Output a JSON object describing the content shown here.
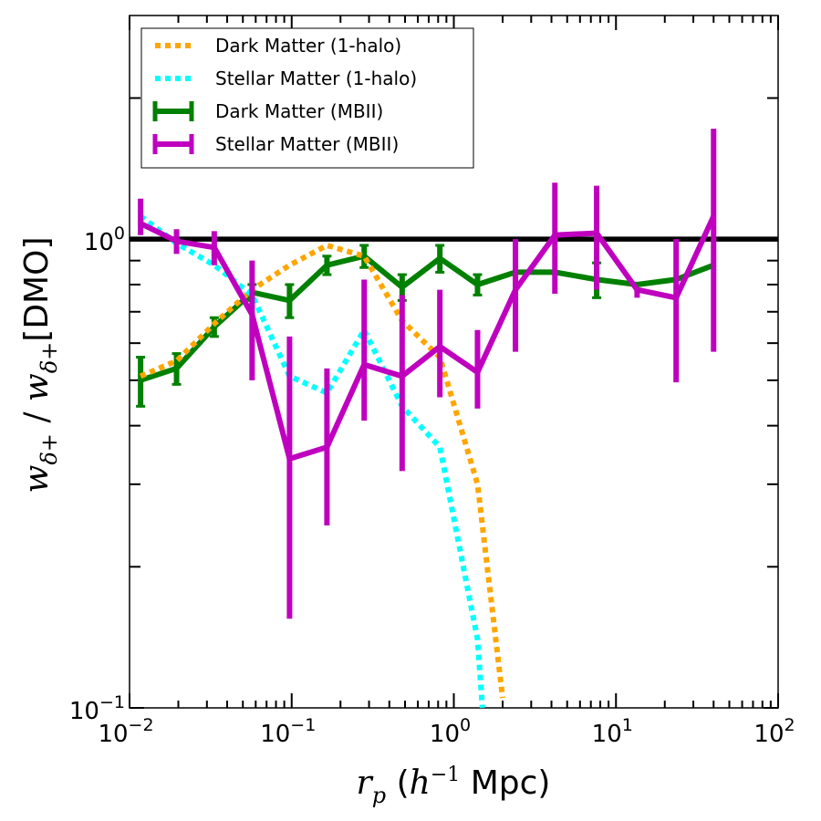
{
  "chart_data": {
    "type": "line",
    "xscale": "log",
    "yscale": "log",
    "xlim": [
      0.01,
      100
    ],
    "ylim": [
      0.1,
      3.0
    ],
    "xlabel": {
      "main": "r",
      "sub": "p",
      "open": " (",
      "base": "h",
      "sup": "−1",
      "unit": " Mpc)"
    },
    "ylabel": {
      "w1": "w",
      "sub1": "δ+",
      "slash": " / ",
      "w2": "w",
      "sub2": "δ+",
      "bracket": "[DMO]"
    },
    "x_major_ticks": [
      {
        "value": 0.01,
        "base": "10",
        "exp": "-2"
      },
      {
        "value": 0.1,
        "base": "10",
        "exp": "-1"
      },
      {
        "value": 1,
        "base": "10",
        "exp": "0"
      },
      {
        "value": 10,
        "base": "10",
        "exp": "1"
      },
      {
        "value": 100,
        "base": "10",
        "exp": "2"
      }
    ],
    "y_major_ticks": [
      {
        "value": 0.1,
        "base": "10",
        "exp": "-1"
      },
      {
        "value": 1,
        "base": "10",
        "exp": "0"
      }
    ],
    "y_minor_ticks": [
      0.2,
      0.3,
      0.4,
      0.5,
      0.6,
      0.7,
      0.8,
      0.9,
      2.0
    ],
    "reference_line": {
      "y": 1.0,
      "color": "#000000"
    },
    "legend": {
      "location": "top-left"
    },
    "series": [
      {
        "name": "Dark Matter (1-halo)",
        "style": "dotted",
        "color": "#ffa500",
        "x": [
          0.0117,
          0.0195,
          0.0333,
          0.057,
          0.097,
          0.165,
          0.28,
          0.48,
          0.82,
          1.4,
          2.0
        ],
        "y": [
          0.51,
          0.55,
          0.66,
          0.78,
          0.88,
          0.97,
          0.92,
          0.67,
          0.56,
          0.3,
          0.105
        ]
      },
      {
        "name": "Stellar Matter (1-halo)",
        "style": "dotted",
        "color": "#00ffff",
        "x": [
          0.0117,
          0.0195,
          0.0333,
          0.057,
          0.097,
          0.165,
          0.28,
          0.48,
          0.82,
          1.4,
          1.5
        ],
        "y": [
          1.12,
          0.98,
          0.88,
          0.76,
          0.51,
          0.47,
          0.64,
          0.44,
          0.36,
          0.14,
          0.1
        ]
      },
      {
        "name": "Dark Matter (MBII)",
        "style": "errorbar",
        "color": "#008000",
        "x": [
          0.0117,
          0.0195,
          0.0333,
          0.057,
          0.097,
          0.165,
          0.28,
          0.48,
          0.82,
          1.4,
          2.4,
          4.2,
          7.6,
          13.5,
          23.5,
          40
        ],
        "y": [
          0.5,
          0.53,
          0.65,
          0.77,
          0.74,
          0.88,
          0.92,
          0.79,
          0.91,
          0.8,
          0.85,
          0.85,
          0.82,
          0.8,
          0.82,
          0.88
        ],
        "yerr": [
          0.06,
          0.04,
          0.03,
          0.03,
          0.06,
          0.04,
          0.05,
          0.05,
          0.06,
          0.04,
          0.0,
          0.0,
          0.07,
          0.0,
          0.0,
          0.0
        ]
      },
      {
        "name": "Stellar Matter (MBII)",
        "style": "errorbar",
        "color": "#bf00bf",
        "x": [
          0.0117,
          0.0195,
          0.0333,
          0.057,
          0.097,
          0.165,
          0.28,
          0.48,
          0.82,
          1.4,
          2.4,
          4.2,
          7.6,
          13.5,
          23.5,
          40
        ],
        "y": [
          1.08,
          0.99,
          0.96,
          0.69,
          0.34,
          0.36,
          0.54,
          0.51,
          0.59,
          0.52,
          0.78,
          1.02,
          1.03,
          0.78,
          0.75,
          1.12
        ],
        "ylo": [
          1.02,
          0.93,
          0.88,
          0.5,
          0.155,
          0.245,
          0.41,
          0.32,
          0.46,
          0.435,
          0.575,
          0.765,
          0.78,
          0.75,
          0.495,
          0.575
        ],
        "yhi": [
          1.22,
          1.05,
          1.04,
          0.9,
          0.62,
          0.53,
          0.82,
          0.76,
          0.78,
          0.64,
          1.0,
          1.32,
          1.3,
          0.78,
          1.0,
          1.72
        ]
      }
    ]
  }
}
